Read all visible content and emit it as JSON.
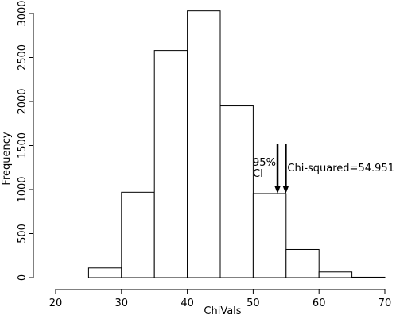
{
  "chart_data": {
    "type": "histogram",
    "x_label": "ChiVals",
    "y_label": "Frequency",
    "bins": [
      20,
      25,
      30,
      35,
      40,
      45,
      50,
      55,
      60,
      65,
      70
    ],
    "values": [
      0,
      110,
      970,
      2580,
      3030,
      1950,
      955,
      320,
      65,
      5
    ],
    "xlim": [
      20,
      70
    ],
    "ylim": [
      0,
      3000
    ],
    "xticks": [
      20,
      30,
      40,
      50,
      60,
      70
    ],
    "yticks": [
      0,
      500,
      1000,
      1500,
      2000,
      2500,
      3000
    ],
    "color": "#ffffff",
    "annotations": [
      {
        "x": 53.7,
        "label_lines": [
          "95%",
          "CI"
        ]
      },
      {
        "x": 54.951,
        "label": "Chi-squared=54.951"
      }
    ]
  }
}
